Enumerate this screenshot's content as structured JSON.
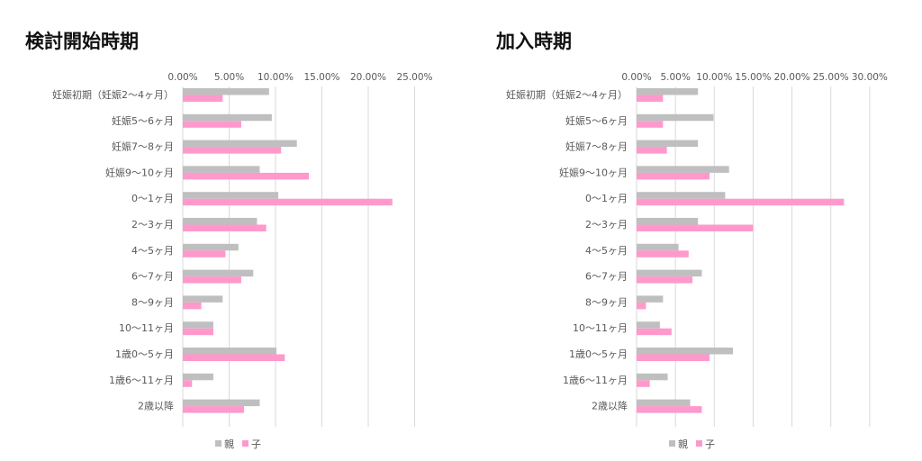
{
  "colors": {
    "parent": "#BFBFBF",
    "child": "#FF99CC",
    "grid": "#D9D9D9",
    "text": "#595959"
  },
  "chart_data": [
    {
      "type": "bar",
      "orientation": "horizontal",
      "title": "検討開始時期",
      "categories": [
        "妊娠初期（妊娠2〜4ヶ月）",
        "妊娠5〜6ヶ月",
        "妊娠7〜8ヶ月",
        "妊娠9〜10ヶ月",
        "0〜1ヶ月",
        "2〜3ヶ月",
        "4〜5ヶ月",
        "6〜7ヶ月",
        "8〜9ヶ月",
        "10〜11ヶ月",
        "1歳0〜5ヶ月",
        "1歳6〜11ヶ月",
        "2歳以降"
      ],
      "series": [
        {
          "name": "親",
          "values": [
            9.3,
            9.6,
            12.3,
            8.3,
            10.3,
            8.0,
            6.0,
            7.6,
            4.3,
            3.3,
            10.1,
            3.3,
            8.3
          ]
        },
        {
          "name": "子",
          "values": [
            4.3,
            6.3,
            10.6,
            13.6,
            22.6,
            9.0,
            4.6,
            6.3,
            2.0,
            3.3,
            11.0,
            1.0,
            6.6
          ]
        }
      ],
      "xlim": [
        0,
        25
      ],
      "ticks": [
        "0.00%",
        "5.00%",
        "10.00%",
        "15.00%",
        "20.00%",
        "25.00%"
      ],
      "grid": true,
      "legend": "bottom"
    },
    {
      "type": "bar",
      "orientation": "horizontal",
      "title": "加入時期",
      "categories": [
        "妊娠初期（妊娠2〜4ヶ月）",
        "妊娠5〜6ヶ月",
        "妊娠7〜8ヶ月",
        "妊娠9〜10ヶ月",
        "0〜1ヶ月",
        "2〜3ヶ月",
        "4〜5ヶ月",
        "6〜7ヶ月",
        "8〜9ヶ月",
        "10〜11ヶ月",
        "1歳0〜5ヶ月",
        "1歳6〜11ヶ月",
        "2歳以降"
      ],
      "series": [
        {
          "name": "親",
          "values": [
            7.9,
            9.9,
            7.9,
            11.9,
            11.4,
            7.9,
            5.4,
            8.4,
            3.4,
            3.0,
            12.4,
            4.0,
            6.9
          ]
        },
        {
          "name": "子",
          "values": [
            3.4,
            3.4,
            3.9,
            9.4,
            26.7,
            15.0,
            6.7,
            7.2,
            1.2,
            4.5,
            9.4,
            1.7,
            8.4
          ]
        }
      ],
      "xlim": [
        0,
        30
      ],
      "ticks": [
        "0.00%",
        "5.00%",
        "10.00%",
        "15.00%",
        "20.00%",
        "25.00%",
        "30.00%"
      ],
      "grid": true,
      "legend": "bottom"
    }
  ]
}
